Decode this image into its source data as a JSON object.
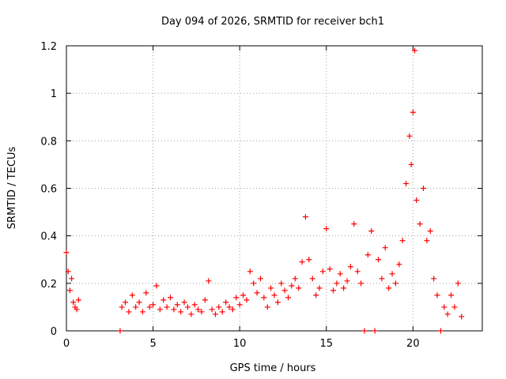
{
  "chart_data": {
    "type": "scatter",
    "title": "Day 094 of 2026, SRMTID for receiver bch1",
    "xlabel": "GPS time / hours",
    "ylabel": "SRMTID / TECUs",
    "xlim": [
      0,
      24
    ],
    "ylim": [
      0,
      1.2
    ],
    "x_ticks": [
      0,
      5,
      10,
      15,
      20
    ],
    "x_tick_labels": [
      "0",
      "5",
      "10",
      "15",
      "20"
    ],
    "y_ticks": [
      0,
      0.2,
      0.4,
      0.6,
      0.8,
      1.0,
      1.2
    ],
    "y_tick_labels": [
      "0",
      "0.2",
      "0.4",
      "0.6",
      "0.8",
      "1",
      "1.2"
    ],
    "grid": true,
    "marker": "plus",
    "color": "#ff0000",
    "series": [
      {
        "name": "SRMTID",
        "x": [
          0.0,
          0.1,
          0.2,
          0.3,
          0.4,
          0.5,
          0.6,
          0.7,
          3.1,
          3.2,
          3.4,
          3.6,
          3.8,
          4.0,
          4.2,
          4.4,
          4.6,
          4.8,
          5.0,
          5.2,
          5.4,
          5.6,
          5.8,
          6.0,
          6.2,
          6.4,
          6.6,
          6.8,
          7.0,
          7.2,
          7.4,
          7.6,
          7.8,
          8.0,
          8.2,
          8.4,
          8.6,
          8.8,
          9.0,
          9.2,
          9.4,
          9.6,
          9.8,
          10.0,
          10.2,
          10.4,
          10.6,
          10.8,
          11.0,
          11.2,
          11.4,
          11.6,
          11.8,
          12.0,
          12.2,
          12.4,
          12.6,
          12.8,
          13.0,
          13.2,
          13.4,
          13.6,
          13.8,
          14.0,
          14.2,
          14.4,
          14.6,
          14.8,
          15.0,
          15.2,
          15.4,
          15.6,
          15.8,
          16.0,
          16.2,
          16.4,
          16.6,
          16.8,
          17.0,
          17.2,
          17.4,
          17.6,
          17.8,
          18.0,
          18.2,
          18.4,
          18.6,
          18.8,
          19.0,
          19.2,
          19.4,
          19.6,
          19.8,
          19.9,
          20.0,
          20.1,
          20.2,
          20.4,
          20.6,
          20.8,
          21.0,
          21.2,
          21.4,
          21.6,
          21.8,
          22.0,
          22.2,
          22.4,
          22.6,
          22.8
        ],
        "y": [
          0.33,
          0.25,
          0.17,
          0.22,
          0.12,
          0.1,
          0.09,
          0.13,
          0.0,
          0.1,
          0.12,
          0.08,
          0.15,
          0.1,
          0.12,
          0.08,
          0.16,
          0.1,
          0.11,
          0.19,
          0.09,
          0.13,
          0.1,
          0.14,
          0.09,
          0.11,
          0.08,
          0.12,
          0.1,
          0.07,
          0.11,
          0.09,
          0.08,
          0.13,
          0.21,
          0.09,
          0.07,
          0.1,
          0.08,
          0.12,
          0.1,
          0.09,
          0.14,
          0.11,
          0.15,
          0.13,
          0.25,
          0.2,
          0.16,
          0.22,
          0.14,
          0.1,
          0.18,
          0.15,
          0.12,
          0.2,
          0.17,
          0.14,
          0.19,
          0.22,
          0.18,
          0.29,
          0.48,
          0.3,
          0.22,
          0.15,
          0.18,
          0.25,
          0.43,
          0.26,
          0.17,
          0.2,
          0.24,
          0.18,
          0.21,
          0.27,
          0.45,
          0.25,
          0.2,
          0.0,
          0.32,
          0.42,
          0.0,
          0.3,
          0.22,
          0.35,
          0.18,
          0.24,
          0.2,
          0.28,
          0.38,
          0.62,
          0.82,
          0.7,
          0.92,
          1.18,
          0.55,
          0.45,
          0.6,
          0.38,
          0.42,
          0.22,
          0.15,
          0.0,
          0.1,
          0.07,
          0.15,
          0.1,
          0.2,
          0.06
        ]
      }
    ]
  }
}
